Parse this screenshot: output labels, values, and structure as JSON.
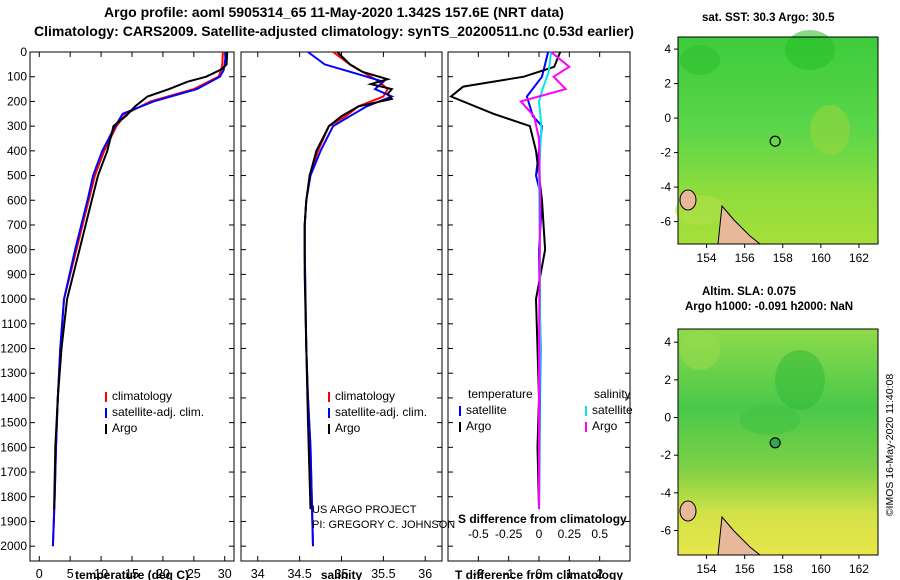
{
  "header": {
    "title_line1": "Argo profile: aoml 5905314_65 11-May-2020 1.342S 157.6E (NRT data)",
    "title_line2": "Climatology: CARS2009. Satellite-adjusted climatology: synTS_20200511.nc (0.53d earlier)"
  },
  "colors": {
    "climatology": "#ff0000",
    "satellite_adj": "#0000ff",
    "argo": "#000000",
    "salinity_satellite": "#00e5ee",
    "salinity_argo": "#ff00ff",
    "map_green": "#3fcf3f",
    "map_yellow": "#d9e64a",
    "land": "#e8b89a"
  },
  "chart_data": [
    {
      "type": "line",
      "title": "",
      "xlabel": "temperature (deg C)",
      "ylabel": "",
      "xlim": [
        -1.5,
        31.5
      ],
      "ylim": [
        2060,
        0
      ],
      "xticks": [
        0,
        5,
        10,
        15,
        20,
        25,
        30
      ],
      "yticks": [
        0,
        100,
        200,
        300,
        400,
        500,
        600,
        700,
        800,
        900,
        1000,
        1100,
        1200,
        1300,
        1400,
        1500,
        1600,
        1700,
        1800,
        1900,
        2000
      ],
      "legend": [
        "climatology",
        "satellite-adj. clim.",
        "Argo"
      ],
      "series": [
        {
          "name": "climatology",
          "x": [
            29.7,
            29.6,
            29.4,
            29.0,
            25.0,
            18.0,
            14.0,
            12.5,
            10.5,
            9.0,
            8.0,
            7.0,
            6.0,
            5.0,
            4.0,
            3.4,
            3.0,
            2.7,
            2.5,
            2.2
          ],
          "y": [
            0,
            50,
            75,
            100,
            150,
            200,
            250,
            300,
            400,
            500,
            600,
            700,
            800,
            900,
            1000,
            1200,
            1400,
            1600,
            1800,
            2000
          ]
        },
        {
          "name": "satellite-adj. clim.",
          "x": [
            30.2,
            30.0,
            29.8,
            29.2,
            25.5,
            18.5,
            13.5,
            12.3,
            10.2,
            8.7,
            7.8,
            6.8,
            5.8,
            4.9,
            4.0,
            3.4,
            3.0,
            2.7,
            2.5,
            2.2
          ],
          "y": [
            0,
            50,
            75,
            100,
            150,
            200,
            250,
            300,
            400,
            500,
            600,
            700,
            800,
            900,
            1000,
            1200,
            1400,
            1600,
            1800,
            2000
          ]
        },
        {
          "name": "Argo",
          "x": [
            30.4,
            30.3,
            29.5,
            27.0,
            24.0,
            21.0,
            17.5,
            15.5,
            14.0,
            12.0,
            11.0,
            9.5,
            8.5,
            7.5,
            6.5,
            5.5,
            4.5,
            3.6,
            3.0,
            2.6,
            2.4
          ],
          "y": [
            0,
            50,
            70,
            100,
            120,
            150,
            180,
            220,
            260,
            300,
            400,
            500,
            600,
            700,
            800,
            900,
            1000,
            1200,
            1400,
            1600,
            1850
          ]
        }
      ]
    },
    {
      "type": "line",
      "title": "",
      "xlabel": "salinity",
      "ylabel": "",
      "xlim": [
        33.8,
        36.2
      ],
      "ylim": [
        2060,
        0
      ],
      "xticks": [
        34,
        34.5,
        35,
        35.5,
        36
      ],
      "legend": [
        "climatology",
        "satellite-adj. clim.",
        "Argo"
      ],
      "annotations": [
        "US ARGO PROJECT",
        "PI: GREGORY C. JOHNSON"
      ],
      "series": [
        {
          "name": "climatology",
          "x": [
            34.9,
            35.1,
            35.3,
            35.45,
            35.55,
            35.5,
            35.2,
            35.05,
            34.85,
            34.72,
            34.62,
            34.58,
            34.56,
            34.56,
            34.57,
            34.58,
            34.6,
            34.63,
            34.66
          ],
          "y": [
            0,
            50,
            90,
            120,
            150,
            180,
            220,
            260,
            300,
            400,
            500,
            600,
            700,
            800,
            1000,
            1200,
            1400,
            1600,
            2000
          ]
        },
        {
          "name": "satellite-adj. clim.",
          "x": [
            34.6,
            34.8,
            35.2,
            35.5,
            35.4,
            35.6,
            35.3,
            35.1,
            34.9,
            34.75,
            34.63,
            34.58,
            34.56,
            34.56,
            34.57,
            34.58,
            34.6,
            34.63,
            34.66
          ],
          "y": [
            0,
            50,
            90,
            120,
            150,
            180,
            220,
            260,
            300,
            400,
            500,
            600,
            700,
            800,
            1000,
            1200,
            1400,
            1600,
            2000
          ]
        },
        {
          "name": "Argo",
          "x": [
            34.95,
            35.1,
            35.25,
            35.55,
            35.35,
            35.6,
            35.55,
            35.6,
            35.2,
            35.0,
            34.85,
            34.7,
            34.62,
            34.58,
            34.56,
            34.56,
            34.58,
            34.6,
            34.63
          ],
          "y": [
            0,
            50,
            80,
            110,
            130,
            150,
            170,
            190,
            220,
            260,
            300,
            400,
            500,
            600,
            700,
            900,
            1200,
            1500,
            1850
          ]
        }
      ]
    },
    {
      "type": "line",
      "title": "",
      "xlabel": "T difference from climatology",
      "ylabel": "",
      "xlim": [
        -3,
        3
      ],
      "ylim": [
        2060,
        0
      ],
      "xticks": [
        -2,
        -1,
        0,
        1,
        2
      ],
      "secondary_xlabel": "S difference from climatology",
      "secondary_xticks": [
        -0.5,
        -0.25,
        0,
        0.25,
        0.5
      ],
      "secondary_xlim": [
        -0.75,
        0.75
      ],
      "legend": [
        "temperature",
        "satellite",
        "Argo",
        "salinity",
        "satellite",
        "Argo"
      ],
      "series": [
        {
          "name": "temperature satellite",
          "x": [
            0.3,
            0.1,
            -0.4,
            -0.2,
            0.1,
            0.0,
            -0.1,
            0.1,
            0.0,
            0.05,
            0.0
          ],
          "y": [
            0,
            100,
            180,
            260,
            300,
            400,
            500,
            600,
            800,
            1200,
            1850
          ]
        },
        {
          "name": "temperature Argo",
          "x": [
            0.7,
            0.5,
            -0.5,
            -2.5,
            -2.9,
            -1.5,
            -0.3,
            -0.1,
            0.1,
            0.2,
            -0.1,
            0.0,
            -0.05,
            0.0
          ],
          "y": [
            0,
            60,
            100,
            140,
            180,
            250,
            300,
            400,
            600,
            800,
            1000,
            1400,
            1600,
            1850
          ]
        },
        {
          "name": "salinity satellite",
          "x": [
            0.1,
            0.08,
            0.03,
            0.0,
            0.02,
            0.0,
            0.01,
            0.0
          ],
          "y": [
            0,
            80,
            150,
            200,
            300,
            500,
            1000,
            1850
          ]
        },
        {
          "name": "salinity Argo",
          "x": [
            0.1,
            0.25,
            0.12,
            0.22,
            -0.15,
            -0.04,
            0.0,
            0.01,
            0.0,
            0.0
          ],
          "y": [
            0,
            60,
            100,
            150,
            200,
            260,
            350,
            600,
            1200,
            1850
          ]
        }
      ]
    }
  ],
  "maps": [
    {
      "title": "sat. SST: 30.3 Argo: 30.5",
      "lon_ticks": [
        154,
        156,
        158,
        160,
        162
      ],
      "lat_ticks": [
        4,
        2,
        0,
        -2,
        -4,
        -6
      ],
      "lon_range": [
        152.5,
        163
      ],
      "lat_range": [
        -7.3,
        4.7
      ],
      "marker": {
        "lon": 157.6,
        "lat": -1.342
      }
    },
    {
      "title": "Altim. SLA: 0.075",
      "subtitle": "Argo h1000: -0.091 h2000: NaN",
      "lon_ticks": [
        154,
        156,
        158,
        160,
        162
      ],
      "lat_ticks": [
        4,
        2,
        0,
        -2,
        -4,
        -6
      ],
      "lon_range": [
        152.5,
        163
      ],
      "lat_range": [
        -7.3,
        4.7
      ],
      "marker": {
        "lon": 157.6,
        "lat": -1.342
      }
    }
  ],
  "footer": {
    "credit": "©IMOS 16-May-2020 11:40:08"
  }
}
